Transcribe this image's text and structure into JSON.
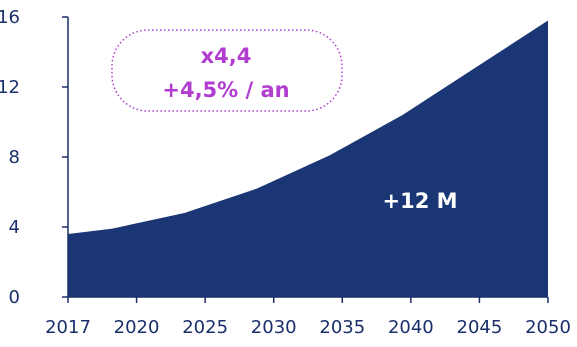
{
  "chart_data": {
    "type": "area",
    "x": [
      2017,
      2020,
      2025,
      2030,
      2035,
      2040,
      2045,
      2050
    ],
    "values": [
      3.6,
      3.9,
      4.8,
      6.2,
      8.1,
      10.4,
      13.1,
      15.8
    ],
    "x_tick_labels": [
      "2017",
      "2020",
      "2025",
      "2030",
      "2035",
      "2040",
      "2045",
      "2050"
    ],
    "y_tick_labels": [
      "0",
      "4",
      "8",
      "12",
      "16"
    ],
    "yticks": [
      0,
      4,
      8,
      12,
      16
    ],
    "ylim": [
      0,
      16
    ],
    "xlim": [
      2017,
      2050
    ],
    "grid": false,
    "legend": "none",
    "annotation": {
      "line1": "x4,4",
      "line2": "+4,5% / an"
    },
    "inside_label": "+12 M",
    "colors": {
      "area": "#1a3674",
      "axis": "#1b2f6b",
      "annotation": "#b13ccf",
      "inside_text": "#ffffff"
    }
  }
}
